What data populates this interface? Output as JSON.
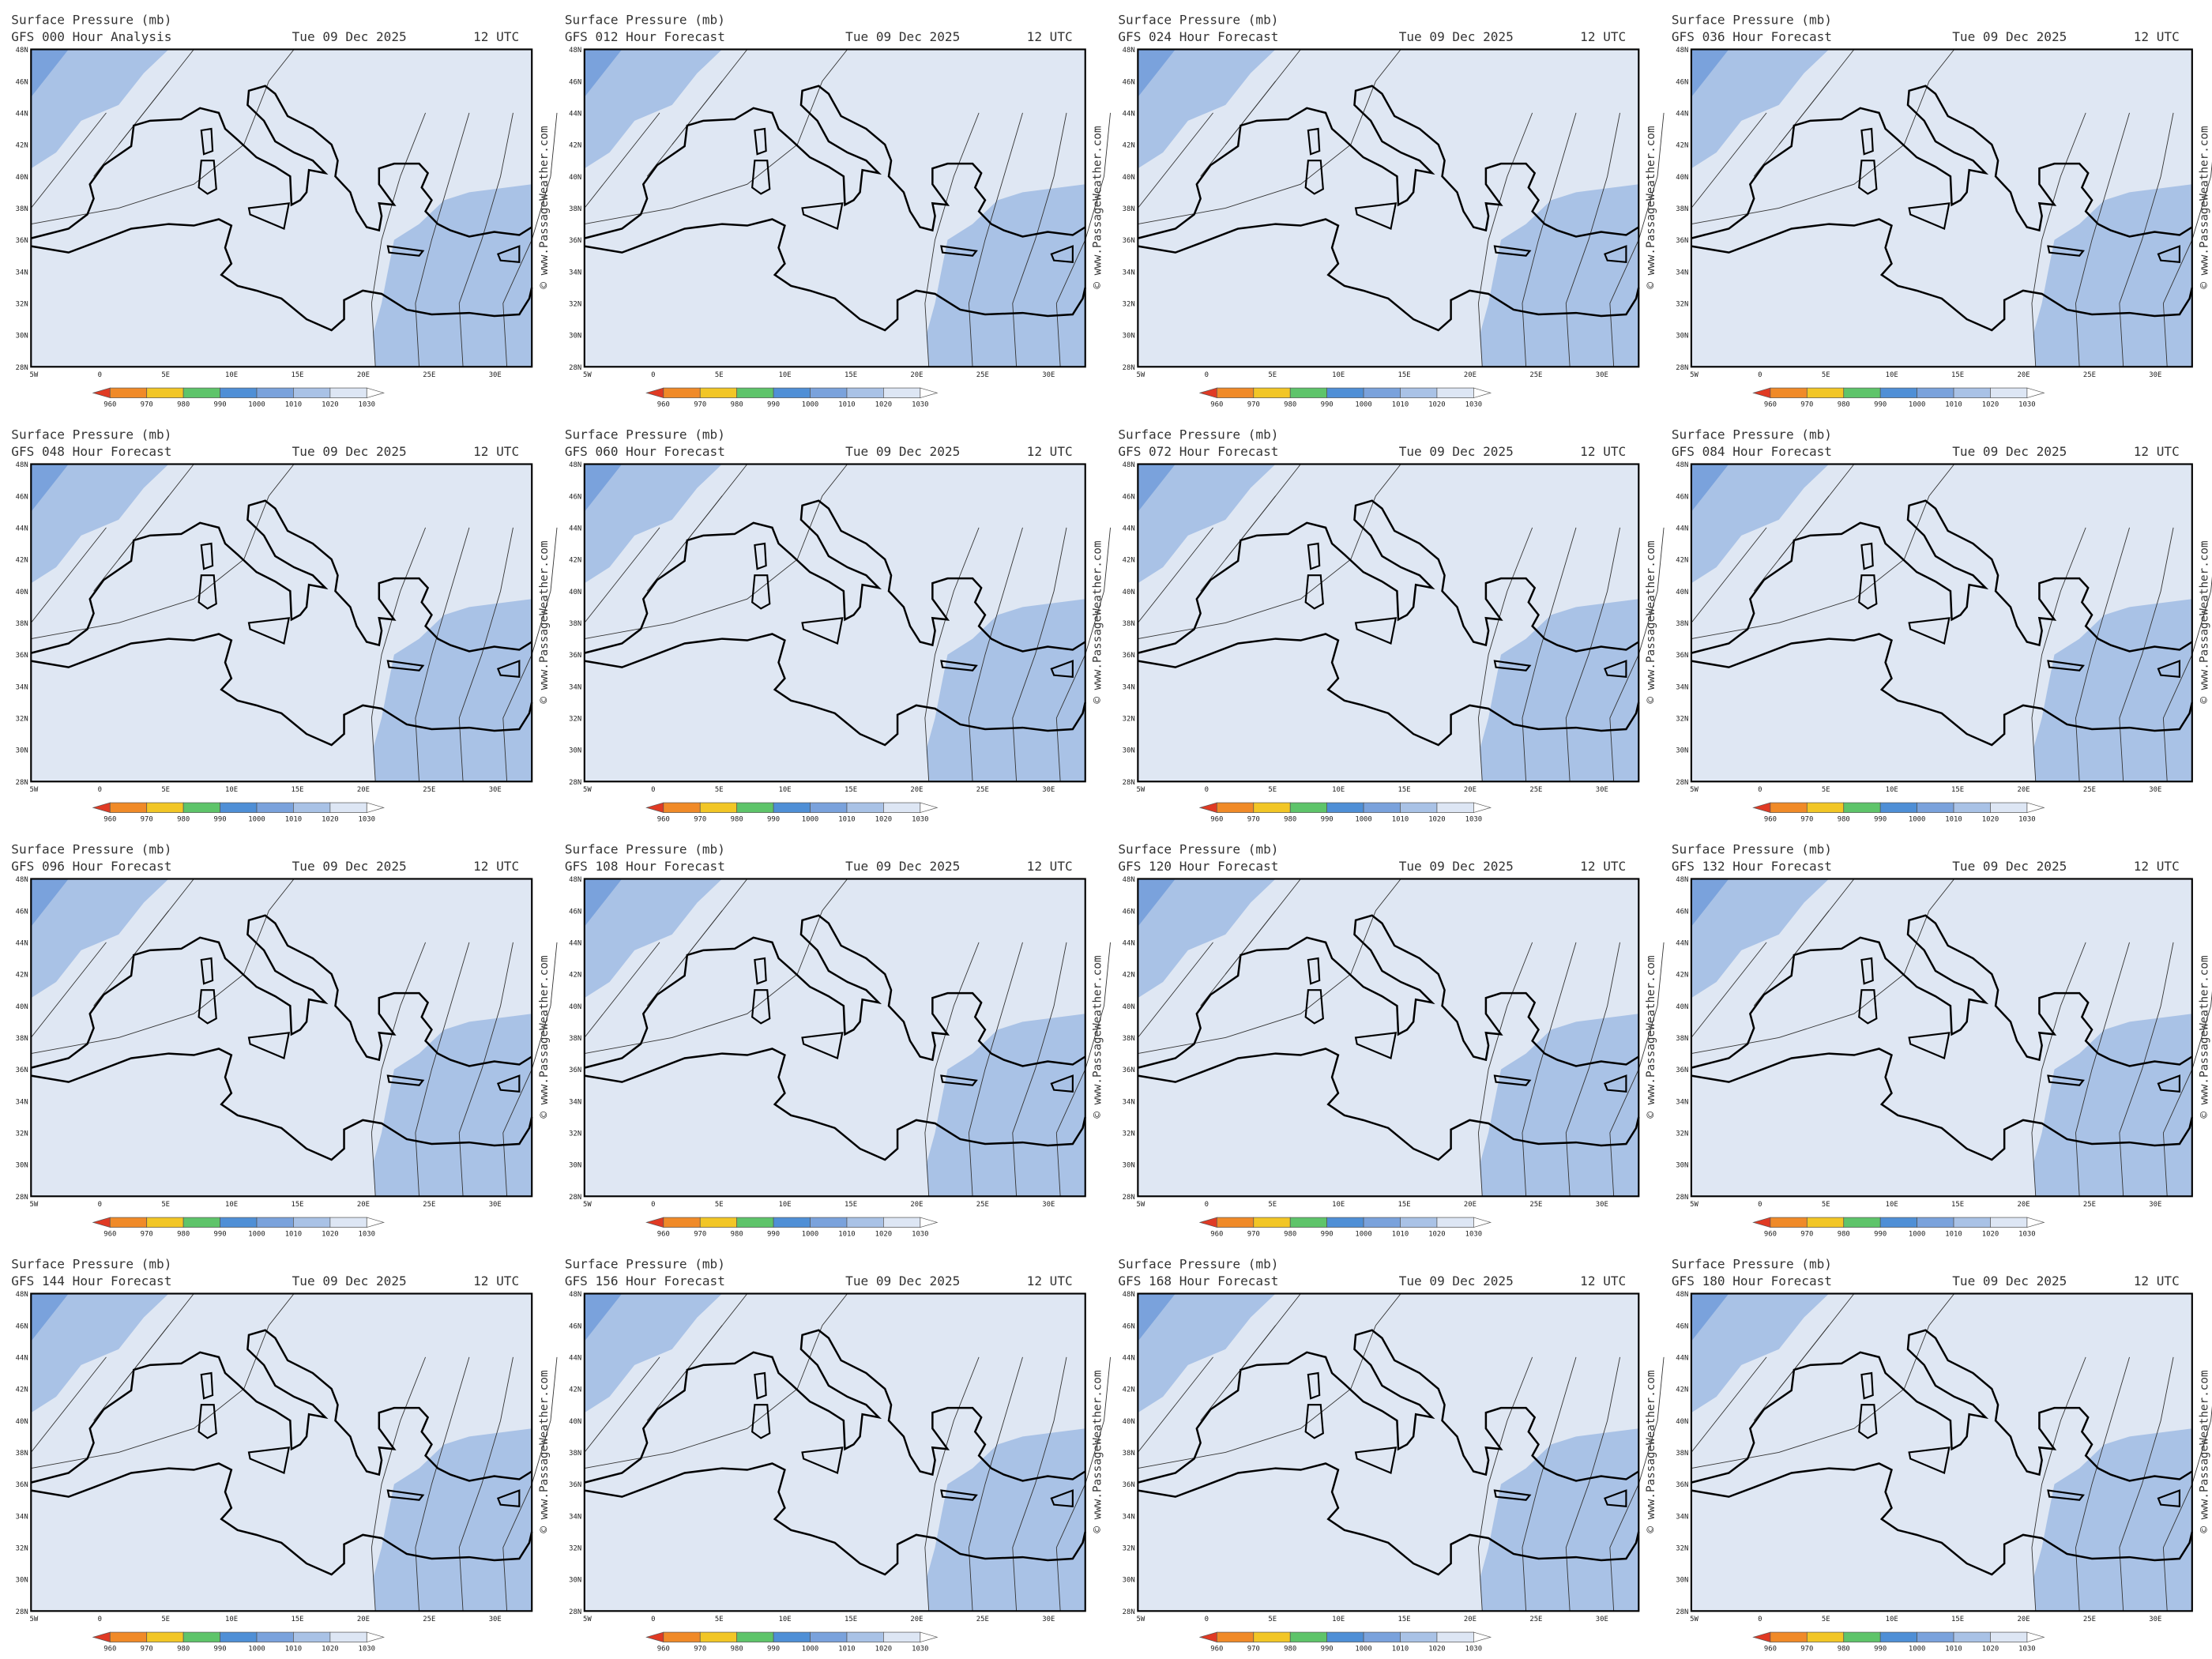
{
  "common": {
    "title": "Surface Pressure (mb)",
    "date": "Tue 09 Dec 2025",
    "time": "12 UTC",
    "watermark": "© www.PassageWeather.com",
    "lat_labels": [
      "48N",
      "46N",
      "44N",
      "42N",
      "40N",
      "38N",
      "36N",
      "34N",
      "32N",
      "30N",
      "28N"
    ],
    "lon_labels": [
      "5W",
      "0",
      "5E",
      "10E",
      "15E",
      "20E",
      "25E",
      "30E"
    ],
    "colorbar": {
      "labels": [
        "960",
        "970",
        "980",
        "990",
        "1000",
        "1010",
        "1020",
        "1030"
      ],
      "colors": [
        "#e03a24",
        "#f08a28",
        "#f2c626",
        "#5ec46a",
        "#4f8fd6",
        "#7aa2dc",
        "#a9c2e6",
        "#dde6f4",
        "#ffffff"
      ]
    }
  },
  "panels": [
    {
      "run": "GFS 000 Hour Analysis"
    },
    {
      "run": "GFS 012 Hour Forecast"
    },
    {
      "run": "GFS 024 Hour Forecast"
    },
    {
      "run": "GFS 036 Hour Forecast"
    },
    {
      "run": "GFS 048 Hour Forecast"
    },
    {
      "run": "GFS 060 Hour Forecast"
    },
    {
      "run": "GFS 072 Hour Forecast"
    },
    {
      "run": "GFS 084 Hour Forecast"
    },
    {
      "run": "GFS 096 Hour Forecast"
    },
    {
      "run": "GFS 108 Hour Forecast"
    },
    {
      "run": "GFS 120 Hour Forecast"
    },
    {
      "run": "GFS 132 Hour Forecast"
    },
    {
      "run": "GFS 144 Hour Forecast"
    },
    {
      "run": "GFS 156 Hour Forecast"
    },
    {
      "run": "GFS 168 Hour Forecast"
    },
    {
      "run": "GFS 180 Hour Forecast"
    }
  ]
}
